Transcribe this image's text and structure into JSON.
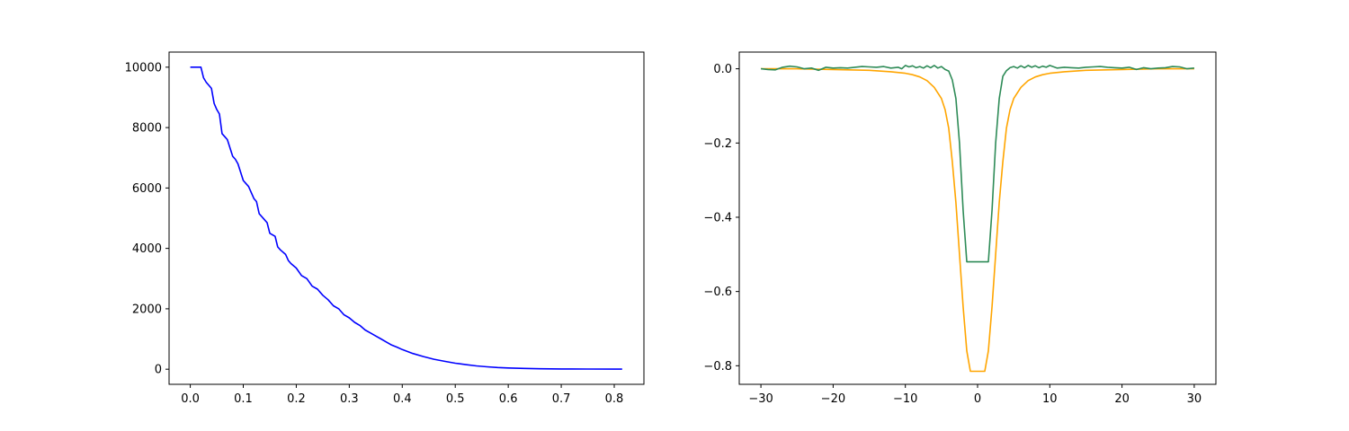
{
  "chart_data": [
    {
      "type": "line",
      "title": "",
      "xlabel": "",
      "ylabel": "",
      "xlim": [
        -0.04,
        0.856
      ],
      "ylim": [
        -500,
        10500
      ],
      "xticks": [
        0.0,
        0.1,
        0.2,
        0.3,
        0.4,
        0.5,
        0.6,
        0.7,
        0.8
      ],
      "xtick_labels": [
        "0.0",
        "0.1",
        "0.2",
        "0.3",
        "0.4",
        "0.5",
        "0.6",
        "0.7",
        "0.8"
      ],
      "yticks": [
        0,
        2000,
        4000,
        6000,
        8000,
        10000
      ],
      "ytick_labels": [
        "0",
        "2000",
        "4000",
        "6000",
        "8000",
        "10000"
      ],
      "grid": false,
      "series": [
        {
          "color": "#0000ff",
          "x": [
            0.0,
            0.02,
            0.025,
            0.03,
            0.04,
            0.045,
            0.05,
            0.055,
            0.06,
            0.065,
            0.07,
            0.08,
            0.085,
            0.09,
            0.1,
            0.105,
            0.11,
            0.12,
            0.125,
            0.13,
            0.14,
            0.145,
            0.15,
            0.16,
            0.165,
            0.17,
            0.18,
            0.185,
            0.19,
            0.2,
            0.21,
            0.22,
            0.23,
            0.24,
            0.25,
            0.26,
            0.27,
            0.28,
            0.29,
            0.3,
            0.31,
            0.32,
            0.33,
            0.34,
            0.35,
            0.36,
            0.37,
            0.38,
            0.39,
            0.4,
            0.42,
            0.44,
            0.46,
            0.48,
            0.5,
            0.52,
            0.54,
            0.56,
            0.58,
            0.6,
            0.63,
            0.66,
            0.7,
            0.75,
            0.8,
            0.815
          ],
          "y": [
            10000,
            10000,
            9650,
            9500,
            9300,
            8800,
            8600,
            8450,
            7800,
            7700,
            7600,
            7050,
            6950,
            6800,
            6250,
            6150,
            6050,
            5650,
            5550,
            5150,
            4950,
            4850,
            4500,
            4400,
            4050,
            3950,
            3800,
            3600,
            3500,
            3350,
            3100,
            3000,
            2750,
            2650,
            2450,
            2300,
            2100,
            2000,
            1800,
            1700,
            1550,
            1450,
            1300,
            1200,
            1100,
            1000,
            900,
            800,
            730,
            650,
            520,
            420,
            330,
            260,
            200,
            150,
            110,
            80,
            55,
            40,
            25,
            15,
            8,
            4,
            2,
            1
          ]
        }
      ]
    },
    {
      "type": "line",
      "title": "",
      "xlabel": "",
      "ylabel": "",
      "xlim": [
        -33,
        33
      ],
      "ylim": [
        -0.85,
        0.045
      ],
      "xticks": [
        -30,
        -20,
        -10,
        0,
        10,
        20,
        30
      ],
      "xtick_labels": [
        "−30",
        "−20",
        "−10",
        "0",
        "10",
        "20",
        "30"
      ],
      "yticks": [
        0.0,
        -0.2,
        -0.4,
        -0.6,
        -0.8
      ],
      "ytick_labels": [
        "0.0",
        "−0.2",
        "−0.4",
        "−0.6",
        "−0.8"
      ],
      "grid": false,
      "series": [
        {
          "color": "#ffa500",
          "x": [
            -30,
            -25,
            -20,
            -15,
            -12,
            -10,
            -9,
            -8,
            -7,
            -6,
            -5,
            -4.5,
            -4,
            -3.5,
            -3,
            -2.5,
            -2,
            -1.5,
            -1,
            1,
            1.5,
            2,
            2.5,
            3,
            3.5,
            4,
            4.5,
            5,
            6,
            7,
            8,
            9,
            10,
            12,
            15,
            20,
            25,
            30
          ],
          "y": [
            0.0,
            0.0,
            -0.002,
            -0.004,
            -0.008,
            -0.012,
            -0.016,
            -0.022,
            -0.032,
            -0.05,
            -0.08,
            -0.11,
            -0.16,
            -0.25,
            -0.36,
            -0.5,
            -0.64,
            -0.76,
            -0.815,
            -0.815,
            -0.76,
            -0.64,
            -0.5,
            -0.36,
            -0.25,
            -0.16,
            -0.11,
            -0.08,
            -0.05,
            -0.032,
            -0.022,
            -0.016,
            -0.012,
            -0.008,
            -0.004,
            -0.002,
            0.0,
            0.0
          ]
        },
        {
          "color": "#2e8b57",
          "x": [
            -30,
            -29,
            -28,
            -27,
            -26,
            -25,
            -24,
            -23,
            -22,
            -21,
            -20,
            -19,
            -18,
            -17,
            -16,
            -15,
            -14,
            -13,
            -12,
            -11,
            -10.5,
            -10,
            -9.5,
            -9,
            -8.5,
            -8,
            -7.5,
            -7,
            -6.5,
            -6,
            -5.5,
            -5,
            -4.5,
            -4,
            -3.5,
            -3,
            -2.5,
            -2,
            -1.5,
            -1,
            1,
            1.5,
            2,
            2.5,
            3,
            3.5,
            4,
            4.5,
            5,
            5.5,
            6,
            6.5,
            7,
            7.5,
            8,
            8.5,
            9,
            9.5,
            10,
            11,
            12,
            13,
            14,
            15,
            16,
            17,
            18,
            19,
            20,
            21,
            22,
            23,
            24,
            25,
            26,
            27,
            28,
            29,
            30
          ],
          "y": [
            0.0,
            -0.002,
            -0.003,
            0.004,
            0.007,
            0.005,
            0.0,
            0.002,
            -0.004,
            0.004,
            0.002,
            0.003,
            0.002,
            0.004,
            0.006,
            0.005,
            0.004,
            0.006,
            0.002,
            0.004,
            0.0,
            0.009,
            0.005,
            0.008,
            0.003,
            0.006,
            0.002,
            0.008,
            0.003,
            0.009,
            0.002,
            0.006,
            -0.002,
            -0.006,
            -0.03,
            -0.08,
            -0.2,
            -0.38,
            -0.52,
            -0.52,
            -0.52,
            -0.52,
            -0.38,
            -0.2,
            -0.08,
            -0.02,
            -0.005,
            0.003,
            0.006,
            0.002,
            0.008,
            0.003,
            0.009,
            0.004,
            0.008,
            0.003,
            0.007,
            0.004,
            0.009,
            0.002,
            0.004,
            0.003,
            0.002,
            0.004,
            0.005,
            0.006,
            0.004,
            0.003,
            0.002,
            0.004,
            -0.002,
            0.003,
            0.0,
            0.002,
            0.003,
            0.006,
            0.005,
            0.0,
            0.002
          ]
        }
      ]
    }
  ]
}
